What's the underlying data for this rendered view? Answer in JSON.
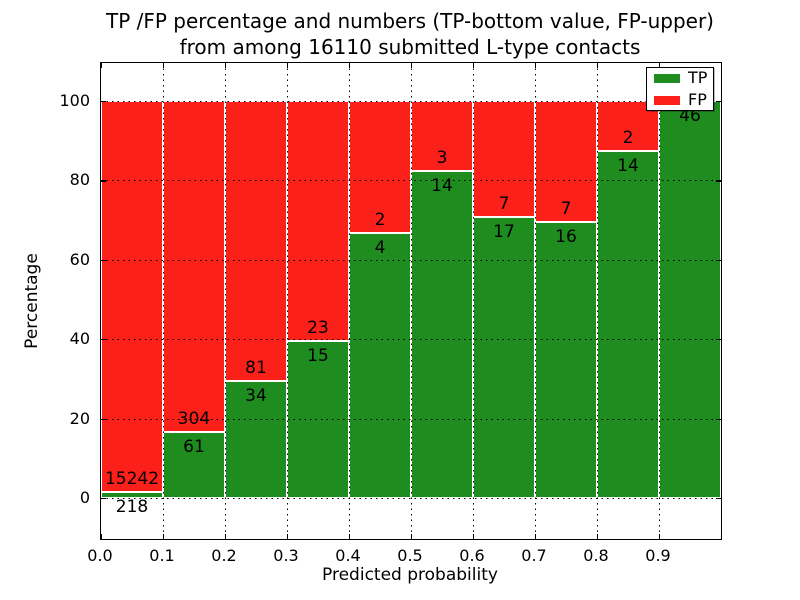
{
  "figure": {
    "title_line1": "TP /FP percentage and numbers (TP-bottom value, FP-upper)",
    "title_line2": "from among 16110 submitted L-type contacts"
  },
  "chart_data": {
    "type": "bar",
    "stacked": true,
    "normalized_to_100pct": true,
    "title": "TP /FP percentage and numbers (TP-bottom value, FP-upper) from among 16110 submitted L-type contacts",
    "xlabel": "Predicted probability",
    "ylabel": "Percentage",
    "x_tick_labels": [
      "0.0",
      "0.1",
      "0.2",
      "0.3",
      "0.4",
      "0.5",
      "0.6",
      "0.7",
      "0.8",
      "0.9"
    ],
    "y_ticks": [
      0,
      20,
      40,
      60,
      80,
      100
    ],
    "xlim": [
      0.0,
      1.0
    ],
    "ylim": [
      -10.5,
      110
    ],
    "bar_width": 0.1,
    "grid": "dotted black gridlines drawn over bars",
    "total_submitted": 16110,
    "legend": {
      "position": "upper right",
      "entries": [
        {
          "label": "TP",
          "color": "#1e8c1e"
        },
        {
          "label": "FP",
          "color": "#fb201a"
        }
      ]
    },
    "bins": [
      {
        "x_start": 0.0,
        "x_end": 0.1,
        "tp": 218,
        "fp": 15242,
        "tp_pct": 1.41
      },
      {
        "x_start": 0.1,
        "x_end": 0.2,
        "tp": 61,
        "fp": 304,
        "tp_pct": 16.71
      },
      {
        "x_start": 0.2,
        "x_end": 0.3,
        "tp": 34,
        "fp": 81,
        "tp_pct": 29.57
      },
      {
        "x_start": 0.3,
        "x_end": 0.4,
        "tp": 15,
        "fp": 23,
        "tp_pct": 39.47
      },
      {
        "x_start": 0.4,
        "x_end": 0.5,
        "tp": 4,
        "fp": 2,
        "tp_pct": 66.67
      },
      {
        "x_start": 0.5,
        "x_end": 0.6,
        "tp": 14,
        "fp": 3,
        "tp_pct": 82.35
      },
      {
        "x_start": 0.6,
        "x_end": 0.7,
        "tp": 17,
        "fp": 7,
        "tp_pct": 70.83
      },
      {
        "x_start": 0.7,
        "x_end": 0.8,
        "tp": 16,
        "fp": 7,
        "tp_pct": 69.57
      },
      {
        "x_start": 0.8,
        "x_end": 0.9,
        "tp": 14,
        "fp": 2,
        "tp_pct": 87.5
      },
      {
        "x_start": 0.9,
        "x_end": 1.0,
        "tp": 46,
        "fp": 0,
        "tp_pct": 100.0
      }
    ]
  },
  "colors": {
    "tp": "#1e8c1e",
    "fp": "#fb201a",
    "background": "#ffffff",
    "grid": "#000000",
    "bar_edge": "#ffffff"
  }
}
